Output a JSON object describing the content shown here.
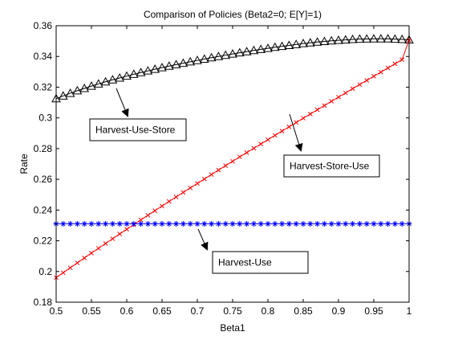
{
  "chart_data": {
    "type": "line",
    "title": "Comparison of Policies (Beta2=0; E[Y]=1)",
    "xlabel": "Beta1",
    "ylabel": "Rate",
    "xlim": [
      0.5,
      1
    ],
    "ylim": [
      0.18,
      0.36
    ],
    "xticks": [
      0.5,
      0.55,
      0.6,
      0.65,
      0.7,
      0.75,
      0.8,
      0.85,
      0.9,
      0.95,
      1
    ],
    "xtick_labels": [
      "0.5",
      "0.55",
      "0.6",
      "0.65",
      "0.7",
      "0.75",
      "0.8",
      "0.85",
      "0.9",
      "0.95",
      "1"
    ],
    "yticks": [
      0.18,
      0.2,
      0.22,
      0.24,
      0.26,
      0.28,
      0.3,
      0.32,
      0.34,
      0.36
    ],
    "ytick_labels": [
      "0.18",
      "0.2",
      "0.22",
      "0.24",
      "0.26",
      "0.28",
      "0.3",
      "0.32",
      "0.34",
      "0.36"
    ],
    "grid": false,
    "legend": "none",
    "x": [
      0.5,
      0.51,
      0.52,
      0.53,
      0.54,
      0.55,
      0.56,
      0.57,
      0.58,
      0.59,
      0.6,
      0.61,
      0.62,
      0.63,
      0.64,
      0.65,
      0.66,
      0.67,
      0.68,
      0.69,
      0.7,
      0.71,
      0.72,
      0.73,
      0.74,
      0.75,
      0.76,
      0.77,
      0.78,
      0.79,
      0.8,
      0.81,
      0.82,
      0.83,
      0.84,
      0.85,
      0.86,
      0.87,
      0.88,
      0.89,
      0.9,
      0.91,
      0.92,
      0.93,
      0.94,
      0.95,
      0.96,
      0.97,
      0.98,
      0.99,
      1
    ],
    "series": [
      {
        "name": "Harvest-Use-Store",
        "color": "#000000",
        "marker": "triangle",
        "values": [
          0.3125,
          0.3143,
          0.316,
          0.3177,
          0.3192,
          0.3207,
          0.3221,
          0.3235,
          0.3248,
          0.326,
          0.3272,
          0.3284,
          0.3295,
          0.3306,
          0.3317,
          0.3327,
          0.3337,
          0.3347,
          0.3356,
          0.3365,
          0.3374,
          0.3383,
          0.3392,
          0.34,
          0.3408,
          0.3416,
          0.3424,
          0.3431,
          0.3439,
          0.3446,
          0.3453,
          0.346,
          0.3466,
          0.3472,
          0.3478,
          0.3484,
          0.3489,
          0.3494,
          0.3498,
          0.3502,
          0.3505,
          0.3508,
          0.3511,
          0.3513,
          0.3514,
          0.3515,
          0.3515,
          0.3515,
          0.3513,
          0.3511,
          0.3508
        ]
      },
      {
        "name": "Harvest-Store-Use",
        "color": "#ff0000",
        "marker": "x",
        "values": [
          0.196,
          0.1992,
          0.2024,
          0.2056,
          0.2088,
          0.212,
          0.2151,
          0.2182,
          0.2213,
          0.2244,
          0.2275,
          0.2305,
          0.2336,
          0.2366,
          0.2396,
          0.2426,
          0.2456,
          0.2485,
          0.2515,
          0.2544,
          0.2573,
          0.2602,
          0.2631,
          0.266,
          0.2689,
          0.2717,
          0.2746,
          0.2774,
          0.2802,
          0.283,
          0.2858,
          0.2886,
          0.2914,
          0.2942,
          0.297,
          0.2998,
          0.3025,
          0.3053,
          0.308,
          0.3108,
          0.3135,
          0.3162,
          0.319,
          0.3217,
          0.3244,
          0.3271,
          0.3298,
          0.3325,
          0.3352,
          0.3379,
          0.3506
        ]
      },
      {
        "name": "Harvest-Use",
        "color": "#0000ff",
        "marker": "star",
        "values": [
          0.231,
          0.231,
          0.231,
          0.231,
          0.231,
          0.231,
          0.231,
          0.231,
          0.231,
          0.231,
          0.231,
          0.231,
          0.231,
          0.231,
          0.231,
          0.231,
          0.231,
          0.231,
          0.231,
          0.231,
          0.231,
          0.231,
          0.231,
          0.231,
          0.231,
          0.231,
          0.231,
          0.231,
          0.231,
          0.231,
          0.231,
          0.231,
          0.231,
          0.231,
          0.231,
          0.231,
          0.231,
          0.231,
          0.231,
          0.231,
          0.231,
          0.231,
          0.231,
          0.231,
          0.231,
          0.231,
          0.231,
          0.231,
          0.231,
          0.231,
          0.231
        ]
      }
    ],
    "annotations": [
      {
        "text": "Harvest-Use-Store",
        "series": "Harvest-Use-Store",
        "points_to": [
          0.55,
          0.3207
        ]
      },
      {
        "text": "Harvest-Store-Use",
        "series": "Harvest-Store-Use",
        "points_to": [
          0.85,
          0.2998
        ]
      },
      {
        "text": "Harvest-Use",
        "series": "Harvest-Use",
        "points_to": [
          0.7,
          0.231
        ]
      }
    ]
  }
}
